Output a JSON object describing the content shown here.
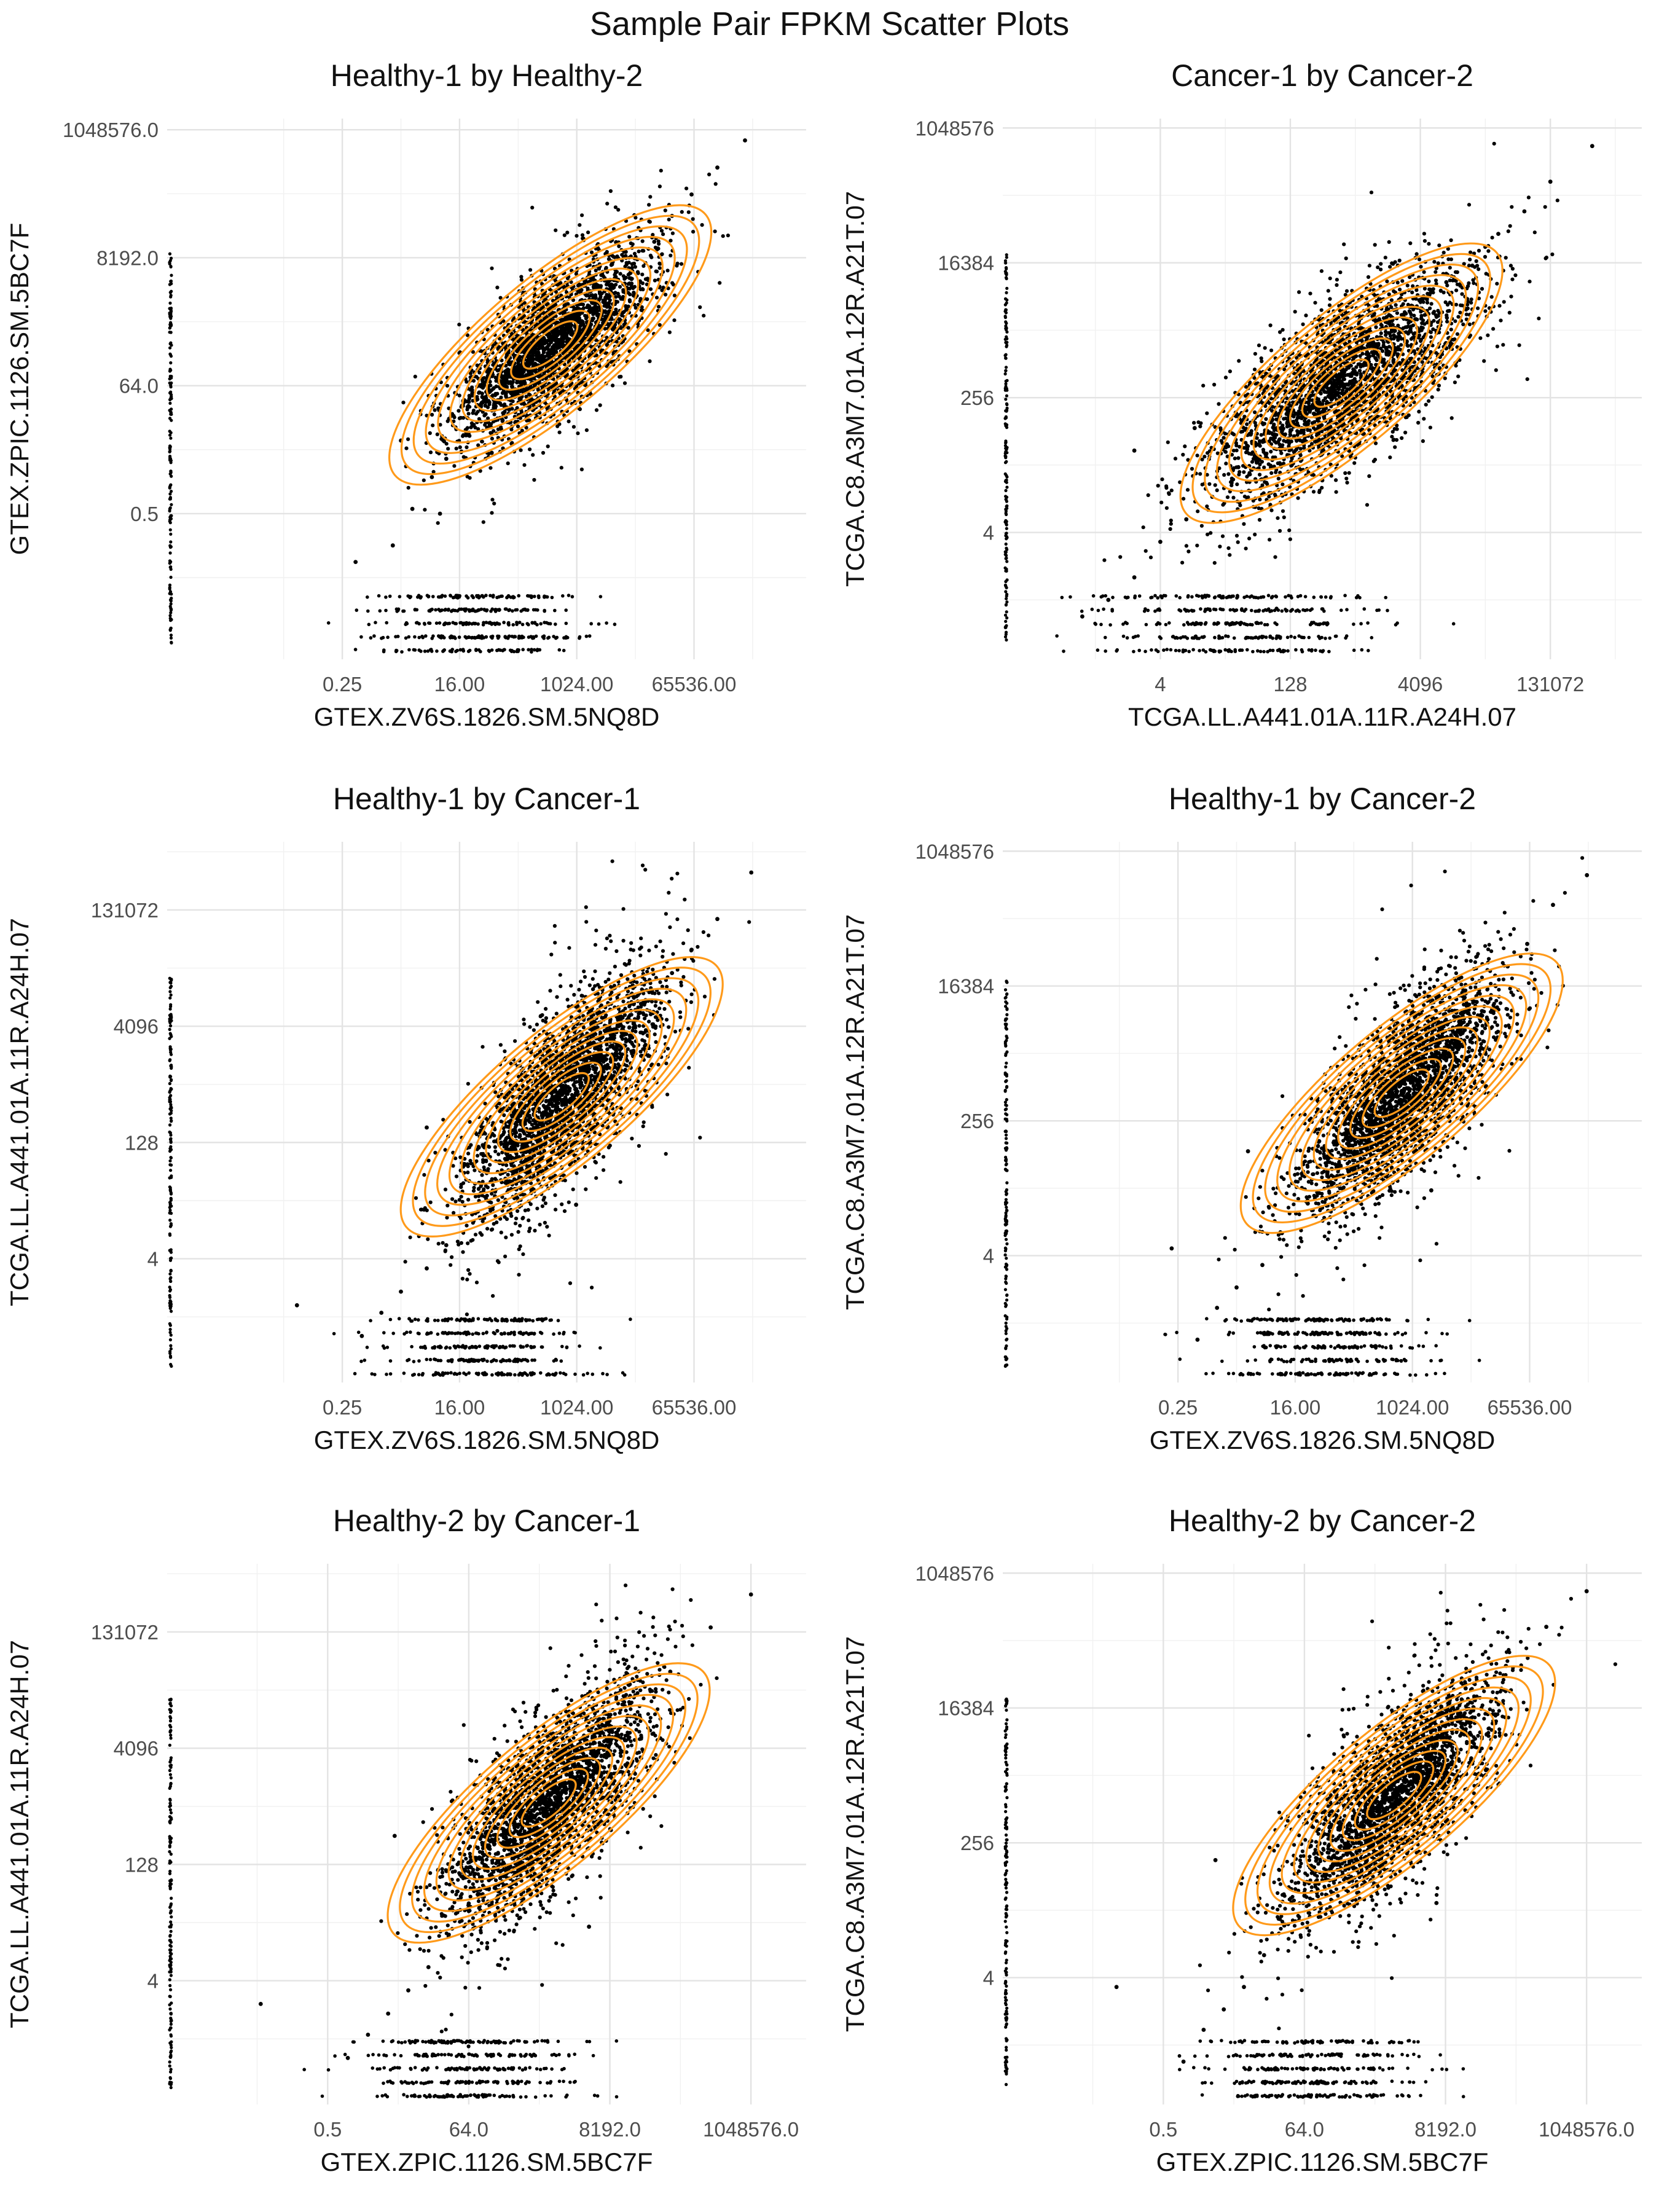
{
  "figure": {
    "title": "Sample Pair FPKM Scatter Plots"
  },
  "colors": {
    "points": "#000000",
    "contours": "#ff9a1a",
    "grid": "#e3e3e3"
  },
  "chart_data": [
    {
      "type": "scatter",
      "title": "Healthy-1 by Healthy-2",
      "xlabel": "GTEX.ZV6S.1826.SM.5NQ8D",
      "ylabel": "GTEX.ZPIC.1126.SM.5BC7F",
      "xscale": "log2",
      "yscale": "log2",
      "xlim": [
        0.0005,
        3500000
      ],
      "ylim": [
        0.002,
        1600000
      ],
      "xticks": [
        0.25,
        16,
        1024,
        65536
      ],
      "xtick_labels": [
        "0.25",
        "16.00",
        "1024.00",
        "65536.00"
      ],
      "yticks": [
        0.5,
        64,
        8192,
        1048576
      ],
      "ytick_labels": [
        "0.5",
        "64.0",
        "8192.0",
        "1048576.0"
      ],
      "grid": true,
      "legend": "none",
      "points": [
        [
          0.4,
          0.08
        ],
        [
          1.5,
          0.15
        ],
        [
          3,
          0.6
        ],
        [
          6,
          2
        ],
        [
          10,
          4
        ],
        [
          20,
          12
        ],
        [
          40,
          30
        ],
        [
          80,
          70
        ],
        [
          150,
          150
        ],
        [
          300,
          200
        ],
        [
          600,
          500
        ],
        [
          1000,
          900
        ],
        [
          2000,
          1800
        ],
        [
          4000,
          3500
        ],
        [
          8000,
          8000
        ],
        [
          16000,
          15000
        ],
        [
          30000,
          40000
        ],
        [
          60000,
          90000
        ],
        [
          150000,
          250000
        ],
        [
          400000,
          700000
        ],
        [
          8,
          0.5
        ],
        [
          2,
          8
        ],
        [
          50,
          5
        ],
        [
          500,
          3000
        ],
        [
          3000,
          300
        ]
      ],
      "density_center": [
        400,
        300
      ]
    },
    {
      "type": "scatter",
      "title": "Cancer-1 by Cancer-2",
      "xlabel": "TCGA.LL.A441.01A.11R.A24H.07",
      "ylabel": "TCGA.C8.A3M7.01A.12R.A21T.07",
      "xscale": "log2",
      "yscale": "log2",
      "xlim": [
        0.06,
        1500000
      ],
      "ylim": [
        0.08,
        1400000
      ],
      "xticks": [
        4,
        128,
        4096,
        131072
      ],
      "xtick_labels": [
        "4",
        "128",
        "4096",
        "131072"
      ],
      "yticks": [
        4,
        256,
        16384,
        1048576
      ],
      "ytick_labels": [
        "4",
        "256",
        "16384",
        "1048576"
      ],
      "grid": true,
      "legend": "none",
      "points": [
        [
          0.5,
          0.3
        ],
        [
          1,
          0.5
        ],
        [
          2,
          1
        ],
        [
          4,
          3
        ],
        [
          8,
          6
        ],
        [
          16,
          12
        ],
        [
          32,
          30
        ],
        [
          64,
          70
        ],
        [
          128,
          120
        ],
        [
          256,
          250
        ],
        [
          512,
          500
        ],
        [
          1024,
          900
        ],
        [
          2048,
          2000
        ],
        [
          4096,
          4000
        ],
        [
          8192,
          9000
        ],
        [
          16384,
          15000
        ],
        [
          32768,
          40000
        ],
        [
          65536,
          80000
        ],
        [
          131072,
          200000
        ],
        [
          400000,
          600000
        ],
        [
          10,
          100
        ],
        [
          300,
          20
        ],
        [
          2,
          50
        ]
      ],
      "density_center": [
        500,
        400
      ]
    },
    {
      "type": "scatter",
      "title": "Healthy-1 by Cancer-1",
      "xlabel": "GTEX.ZV6S.1826.SM.5NQ8D",
      "ylabel": "TCGA.LL.A441.01A.11R.A24H.07",
      "xscale": "log2",
      "yscale": "log2",
      "xlim": [
        0.0005,
        3500000
      ],
      "ylim": [
        0.1,
        1000000
      ],
      "xticks": [
        0.25,
        16,
        1024,
        65536
      ],
      "xtick_labels": [
        "0.25",
        "16.00",
        "1024.00",
        "65536.00"
      ],
      "yticks": [
        4,
        128,
        4096,
        131072
      ],
      "ytick_labels": [
        "4",
        "128",
        "4096",
        "131072"
      ],
      "grid": true,
      "legend": "none",
      "points": [
        [
          0.5,
          0.4
        ],
        [
          1,
          0.8
        ],
        [
          2,
          1.5
        ],
        [
          5,
          3
        ],
        [
          10,
          6
        ],
        [
          25,
          15
        ],
        [
          50,
          40
        ],
        [
          100,
          80
        ],
        [
          250,
          200
        ],
        [
          500,
          400
        ],
        [
          1000,
          900
        ],
        [
          2000,
          1500
        ],
        [
          5000,
          3000
        ],
        [
          10000,
          8000
        ],
        [
          30000,
          20000
        ],
        [
          60000,
          40000
        ],
        [
          150000,
          100000
        ],
        [
          500000,
          400000
        ],
        [
          5,
          200
        ],
        [
          1000,
          20
        ],
        [
          0.05,
          1
        ]
      ],
      "density_center": [
        600,
        500
      ]
    },
    {
      "type": "scatter",
      "title": "Healthy-1 by Cancer-2",
      "xlabel": "GTEX.ZV6S.1826.SM.5NQ8D",
      "ylabel": "TCGA.C8.A3M7.01A.12R.A21T.07",
      "xscale": "log2",
      "yscale": "log2",
      "xlim": [
        0.0005,
        3500000
      ],
      "ylim": [
        0.08,
        1400000
      ],
      "xticks": [
        0.25,
        16,
        1024,
        65536
      ],
      "xtick_labels": [
        "0.25",
        "16.00",
        "1024.00",
        "65536.00"
      ],
      "yticks": [
        4,
        256,
        16384,
        1048576
      ],
      "ytick_labels": [
        "4",
        "256",
        "16384",
        "1048576"
      ],
      "grid": true,
      "legend": "none",
      "points": [
        [
          0.5,
          0.3
        ],
        [
          1,
          0.8
        ],
        [
          2,
          1.5
        ],
        [
          5,
          3
        ],
        [
          10,
          8
        ],
        [
          25,
          20
        ],
        [
          50,
          50
        ],
        [
          100,
          100
        ],
        [
          250,
          250
        ],
        [
          500,
          500
        ],
        [
          1000,
          1000
        ],
        [
          2000,
          1800
        ],
        [
          5000,
          4000
        ],
        [
          10000,
          10000
        ],
        [
          30000,
          30000
        ],
        [
          60000,
          60000
        ],
        [
          150000,
          200000
        ],
        [
          500000,
          500000
        ],
        [
          3,
          100
        ],
        [
          2000,
          30
        ],
        [
          0.2,
          5
        ]
      ],
      "density_center": [
        700,
        600
      ]
    },
    {
      "type": "scatter",
      "title": "Healthy-2 by Cancer-1",
      "xlabel": "GTEX.ZPIC.1126.SM.5BC7F",
      "ylabel": "TCGA.LL.A441.01A.11R.A24H.07",
      "xscale": "log2",
      "yscale": "log2",
      "xlim": [
        0.002,
        7000000
      ],
      "ylim": [
        0.1,
        1000000
      ],
      "xticks": [
        0.5,
        64,
        8192,
        1048576
      ],
      "xtick_labels": [
        "0.5",
        "64.0",
        "8192.0",
        "1048576.0"
      ],
      "yticks": [
        4,
        128,
        4096,
        131072
      ],
      "ytick_labels": [
        "4",
        "128",
        "4096",
        "131072"
      ],
      "grid": true,
      "legend": "none",
      "points": [
        [
          1,
          0.4
        ],
        [
          2,
          0.8
        ],
        [
          4,
          1.5
        ],
        [
          8,
          3
        ],
        [
          16,
          6
        ],
        [
          32,
          15
        ],
        [
          64,
          40
        ],
        [
          128,
          80
        ],
        [
          256,
          200
        ],
        [
          512,
          400
        ],
        [
          1024,
          900
        ],
        [
          2048,
          1500
        ],
        [
          4096,
          3000
        ],
        [
          8192,
          8000
        ],
        [
          16384,
          15000
        ],
        [
          65536,
          40000
        ],
        [
          262144,
          150000
        ],
        [
          1048576,
          400000
        ],
        [
          5,
          300
        ],
        [
          4000,
          20
        ],
        [
          0.05,
          2
        ]
      ],
      "density_center": [
        1000,
        800
      ]
    },
    {
      "type": "scatter",
      "title": "Healthy-2 by Cancer-2",
      "xlabel": "GTEX.ZPIC.1126.SM.5BC7F",
      "ylabel": "TCGA.C8.A3M7.01A.12R.A21T.07",
      "xscale": "log2",
      "yscale": "log2",
      "xlim": [
        0.002,
        7000000
      ],
      "ylim": [
        0.08,
        1400000
      ],
      "xticks": [
        0.5,
        64,
        8192,
        1048576
      ],
      "xtick_labels": [
        "0.5",
        "64.0",
        "8192.0",
        "1048576.0"
      ],
      "yticks": [
        4,
        256,
        16384,
        1048576
      ],
      "ytick_labels": [
        "4",
        "256",
        "16384",
        "1048576"
      ],
      "grid": true,
      "legend": "none",
      "points": [
        [
          1,
          0.3
        ],
        [
          2,
          0.8
        ],
        [
          4,
          1.5
        ],
        [
          8,
          3
        ],
        [
          16,
          8
        ],
        [
          32,
          20
        ],
        [
          64,
          50
        ],
        [
          128,
          100
        ],
        [
          256,
          250
        ],
        [
          512,
          500
        ],
        [
          1024,
          1000
        ],
        [
          2048,
          1800
        ],
        [
          4096,
          4000
        ],
        [
          8192,
          10000
        ],
        [
          16384,
          30000
        ],
        [
          65536,
          60000
        ],
        [
          262144,
          200000
        ],
        [
          1048576,
          600000
        ],
        [
          3,
          150
        ],
        [
          6000,
          40
        ],
        [
          0.1,
          3
        ]
      ],
      "density_center": [
        1400,
        1100
      ]
    }
  ]
}
